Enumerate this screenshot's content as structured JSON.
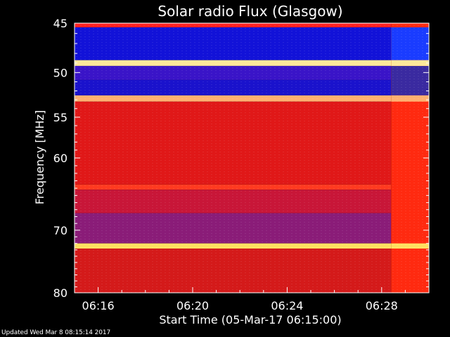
{
  "chart_data": {
    "type": "heatmap",
    "title": "Solar radio Flux (Glasgow)",
    "xlabel": "Start Time (05-Mar-17 06:15:00)",
    "ylabel": "Frequency [MHz]",
    "x_ticks": [
      "06:16",
      "06:20",
      "06:24",
      "06:28"
    ],
    "x_tick_minutes": [
      16,
      20,
      24,
      28
    ],
    "xlim_minutes": [
      15.0,
      30.0
    ],
    "y_ticks": [
      45,
      50,
      55,
      60,
      70,
      80
    ],
    "ylim": [
      45,
      80
    ],
    "y_scale": "log",
    "bands": [
      {
        "from": 45.0,
        "to": 45.4,
        "color": "#ff2020"
      },
      {
        "from": 45.4,
        "to": 48.7,
        "color": "#1212d8"
      },
      {
        "from": 48.7,
        "to": 49.3,
        "color": "#ffe89a"
      },
      {
        "from": 49.3,
        "to": 50.8,
        "color": "#3a14c8"
      },
      {
        "from": 50.8,
        "to": 52.5,
        "color": "#1a12cc"
      },
      {
        "from": 52.5,
        "to": 53.2,
        "color": "#ffb070"
      },
      {
        "from": 53.2,
        "to": 63.5,
        "color": "#e01818"
      },
      {
        "from": 63.5,
        "to": 64.2,
        "color": "#ff3a20"
      },
      {
        "from": 64.2,
        "to": 67.5,
        "color": "#c81638"
      },
      {
        "from": 67.5,
        "to": 72.0,
        "color": "#8a1c78"
      },
      {
        "from": 72.0,
        "to": 72.8,
        "color": "#ffe060"
      },
      {
        "from": 72.8,
        "to": 80.0,
        "color": "#d41a1a"
      }
    ],
    "burst_region": {
      "start_minute": 28.4,
      "color": "#ff2a10",
      "top_color": "#1a3cff"
    },
    "footer": "Updated Wed Mar  8 08:15:14 2017"
  }
}
